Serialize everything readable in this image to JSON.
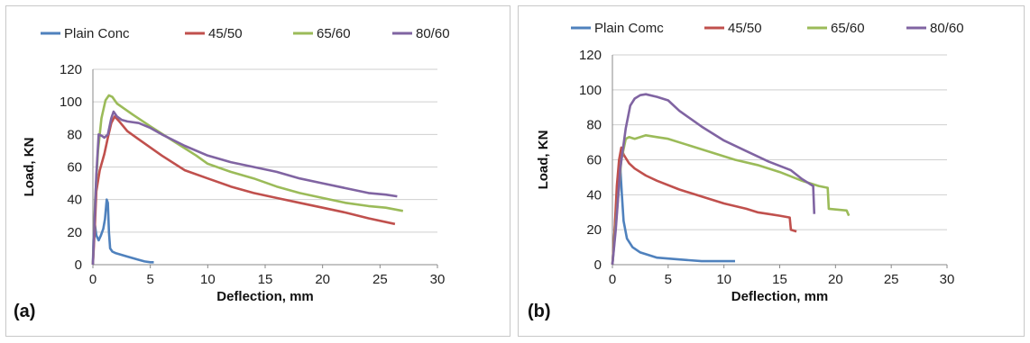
{
  "colors": {
    "series": [
      "#4f81bd",
      "#c0504d",
      "#9bbb59",
      "#8064a2"
    ],
    "grid": "#cfcfcf",
    "axis": "#888888"
  },
  "chart_data": [
    {
      "type": "line",
      "panel_label": "(a)",
      "title": "",
      "xlabel": "Deflection, mm",
      "ylabel": "Load, KN",
      "xlim": [
        0,
        30
      ],
      "ylim": [
        0,
        120
      ],
      "xticks": [
        0,
        5,
        10,
        15,
        20,
        25,
        30
      ],
      "yticks": [
        0,
        20,
        40,
        60,
        80,
        100,
        120
      ],
      "grid": "horizontal",
      "legend_position": "top",
      "series": [
        {
          "name": "Plain Conc",
          "points": [
            [
              0,
              0
            ],
            [
              0.05,
              15
            ],
            [
              0.15,
              26
            ],
            [
              0.3,
              18
            ],
            [
              0.5,
              15
            ],
            [
              0.7,
              18
            ],
            [
              0.9,
              22
            ],
            [
              1.05,
              28
            ],
            [
              1.2,
              40
            ],
            [
              1.3,
              38
            ],
            [
              1.4,
              20
            ],
            [
              1.5,
              10
            ],
            [
              1.7,
              8
            ],
            [
              2,
              7
            ],
            [
              3,
              5
            ],
            [
              4,
              3
            ],
            [
              4.5,
              2
            ],
            [
              5,
              1.5
            ],
            [
              5.3,
              1.5
            ]
          ]
        },
        {
          "name": "45/50",
          "points": [
            [
              0,
              0
            ],
            [
              0.15,
              20
            ],
            [
              0.3,
              45
            ],
            [
              0.6,
              58
            ],
            [
              1,
              68
            ],
            [
              1.3,
              78
            ],
            [
              1.6,
              87
            ],
            [
              1.9,
              91
            ],
            [
              2.3,
              88
            ],
            [
              3,
              82
            ],
            [
              4,
              77
            ],
            [
              6,
              67
            ],
            [
              8,
              58
            ],
            [
              10,
              53
            ],
            [
              12,
              48
            ],
            [
              14,
              44
            ],
            [
              16,
              41
            ],
            [
              18,
              38
            ],
            [
              20,
              35
            ],
            [
              22,
              32
            ],
            [
              24,
              28.5
            ],
            [
              26.3,
              25
            ]
          ]
        },
        {
          "name": "65/60",
          "points": [
            [
              0,
              0
            ],
            [
              0.2,
              40
            ],
            [
              0.45,
              70
            ],
            [
              0.75,
              90
            ],
            [
              1.1,
              101
            ],
            [
              1.4,
              104
            ],
            [
              1.7,
              103
            ],
            [
              2.1,
              99
            ],
            [
              2.7,
              96
            ],
            [
              3.5,
              92
            ],
            [
              5,
              85
            ],
            [
              7,
              76
            ],
            [
              9,
              67
            ],
            [
              10,
              62
            ],
            [
              12,
              57
            ],
            [
              14,
              53
            ],
            [
              16,
              48
            ],
            [
              18,
              44
            ],
            [
              20,
              41
            ],
            [
              22,
              38
            ],
            [
              24,
              36
            ],
            [
              25.5,
              35
            ],
            [
              27,
              33
            ]
          ]
        },
        {
          "name": "80/60",
          "points": [
            [
              0,
              0
            ],
            [
              0.3,
              55
            ],
            [
              0.5,
              80
            ],
            [
              0.8,
              79
            ],
            [
              1,
              78
            ],
            [
              1.3,
              80
            ],
            [
              1.6,
              90
            ],
            [
              1.8,
              94
            ],
            [
              2.1,
              91
            ],
            [
              2.5,
              89
            ],
            [
              3,
              88
            ],
            [
              4,
              87
            ],
            [
              5,
              84
            ],
            [
              6,
              80
            ],
            [
              8,
              73
            ],
            [
              10,
              67
            ],
            [
              12,
              63
            ],
            [
              14,
              60
            ],
            [
              16,
              57
            ],
            [
              18,
              53
            ],
            [
              20,
              50
            ],
            [
              22,
              47
            ],
            [
              24,
              44
            ],
            [
              25.5,
              43
            ],
            [
              26.5,
              42
            ]
          ]
        }
      ]
    },
    {
      "type": "line",
      "panel_label": "(b)",
      "title": "",
      "xlabel": "Deflection, mm",
      "ylabel": "Load, KN",
      "xlim": [
        0,
        30
      ],
      "ylim": [
        0,
        120
      ],
      "xticks": [
        0,
        5,
        10,
        15,
        20,
        25,
        30
      ],
      "yticks": [
        0,
        20,
        40,
        60,
        80,
        100,
        120
      ],
      "grid": "horizontal",
      "legend_position": "top",
      "series": [
        {
          "name": "Plain Comc",
          "points": [
            [
              0,
              0
            ],
            [
              0.2,
              20
            ],
            [
              0.4,
              40
            ],
            [
              0.6,
              55
            ],
            [
              0.7,
              56
            ],
            [
              0.85,
              40
            ],
            [
              1,
              25
            ],
            [
              1.3,
              15
            ],
            [
              1.8,
              10
            ],
            [
              2.5,
              7
            ],
            [
              4,
              4
            ],
            [
              6,
              3
            ],
            [
              8,
              2
            ],
            [
              10,
              2
            ],
            [
              11,
              2
            ]
          ]
        },
        {
          "name": "45/50",
          "points": [
            [
              0,
              0
            ],
            [
              0.2,
              20
            ],
            [
              0.4,
              45
            ],
            [
              0.6,
              60
            ],
            [
              0.8,
              67
            ],
            [
              1,
              63
            ],
            [
              1.5,
              58
            ],
            [
              2,
              55
            ],
            [
              3,
              51
            ],
            [
              4,
              48
            ],
            [
              6,
              43
            ],
            [
              8,
              39
            ],
            [
              10,
              35
            ],
            [
              12,
              32
            ],
            [
              13,
              30
            ],
            [
              14,
              29
            ],
            [
              15,
              28
            ],
            [
              15.9,
              27
            ],
            [
              16,
              20
            ],
            [
              16.5,
              19
            ]
          ]
        },
        {
          "name": "65/60",
          "points": [
            [
              0,
              0
            ],
            [
              0.2,
              15
            ],
            [
              0.4,
              30
            ],
            [
              0.8,
              60
            ],
            [
              1.2,
              72
            ],
            [
              1.5,
              73
            ],
            [
              2,
              72
            ],
            [
              3,
              74
            ],
            [
              4,
              73
            ],
            [
              5,
              72
            ],
            [
              7,
              68
            ],
            [
              9,
              64
            ],
            [
              11,
              60
            ],
            [
              13,
              57
            ],
            [
              15,
              53
            ],
            [
              17,
              48
            ],
            [
              18.5,
              45
            ],
            [
              19.3,
              44
            ],
            [
              19.4,
              32
            ],
            [
              21,
              31
            ],
            [
              21.2,
              28
            ]
          ]
        },
        {
          "name": "80/60",
          "points": [
            [
              0,
              0
            ],
            [
              0.3,
              20
            ],
            [
              0.7,
              55
            ],
            [
              1.2,
              78
            ],
            [
              1.6,
              91
            ],
            [
              2,
              95
            ],
            [
              2.5,
              97
            ],
            [
              3,
              97.5
            ],
            [
              4,
              96
            ],
            [
              5,
              94
            ],
            [
              6,
              88
            ],
            [
              8,
              79
            ],
            [
              10,
              71
            ],
            [
              12,
              65
            ],
            [
              14,
              59
            ],
            [
              16,
              54
            ],
            [
              17,
              49
            ],
            [
              18,
              45
            ],
            [
              18.1,
              29
            ]
          ]
        }
      ]
    }
  ]
}
